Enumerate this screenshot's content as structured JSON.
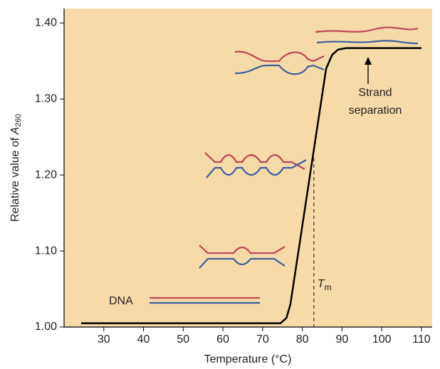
{
  "chart_data": {
    "type": "line",
    "y_label": {
      "main": "Relative value of ",
      "italic": "A",
      "sub": "260"
    },
    "x_label": "Temperature (°C)",
    "x": [
      24.3,
      74.5,
      76,
      77,
      86,
      87.5,
      89,
      91,
      110
    ],
    "series": [
      {
        "color": "#000000",
        "values": [
          1.005,
          1.005,
          1.012,
          1.03,
          1.34,
          1.358,
          1.365,
          1.367,
          1.367
        ]
      }
    ],
    "xlim": [
      20,
      112.7
    ],
    "xticks": [
      30,
      40,
      50,
      60,
      70,
      80,
      90,
      100,
      110
    ],
    "ylim": [
      1.0,
      1.419
    ],
    "yticks": [
      {
        "value": 1.0,
        "label": "1.00"
      },
      {
        "value": 1.1,
        "label": "1.10"
      },
      {
        "value": 1.2,
        "label": "1.20"
      },
      {
        "value": 1.3,
        "label": "1.30"
      },
      {
        "value": 1.4,
        "label": "1.40"
      }
    ],
    "tm": {
      "value": 82.9,
      "label": "T",
      "sub": "m"
    },
    "annotations": {
      "dna": "DNA",
      "strand_separation": [
        "Strand",
        "separation"
      ]
    },
    "background": "#f6dba8"
  }
}
